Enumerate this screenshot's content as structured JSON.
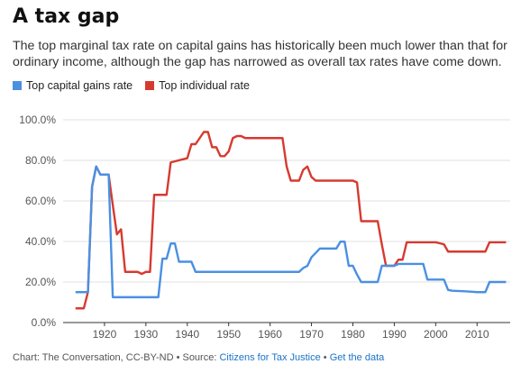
{
  "chart_data": {
    "type": "line",
    "title": "A tax gap",
    "subtitle": "The top marginal tax rate on capital gains has historically been much lower than that for ordinary income, although the gap has narrowed as overall tax rates have come down.",
    "xlabel": "",
    "ylabel": "",
    "xlim": [
      1910,
      2018
    ],
    "ylim": [
      0,
      100
    ],
    "x_ticks": [
      1920,
      1930,
      1940,
      1950,
      1960,
      1970,
      1980,
      1990,
      2000,
      2010
    ],
    "y_ticks": [
      0,
      20,
      40,
      60,
      80,
      100
    ],
    "y_tick_labels": [
      "0.0%",
      "20.0%",
      "40.0%",
      "60.0%",
      "80.0%",
      "100.0%"
    ],
    "grid": "horizontal",
    "legend_position": "top-left",
    "series": [
      {
        "name": "Top capital gains rate",
        "color": "#4a90e2",
        "points": [
          [
            1913,
            15
          ],
          [
            1915,
            15
          ],
          [
            1916,
            15
          ],
          [
            1917,
            67
          ],
          [
            1918,
            77
          ],
          [
            1919,
            73
          ],
          [
            1920,
            73
          ],
          [
            1921,
            73
          ],
          [
            1922,
            12.5
          ],
          [
            1933,
            12.5
          ],
          [
            1934,
            31.5
          ],
          [
            1935,
            31.5
          ],
          [
            1936,
            39
          ],
          [
            1937,
            39
          ],
          [
            1938,
            30
          ],
          [
            1941,
            30
          ],
          [
            1942,
            25
          ],
          [
            1967,
            25
          ],
          [
            1968,
            26.9
          ],
          [
            1969,
            27.9
          ],
          [
            1970,
            32.2
          ],
          [
            1971,
            34.3
          ],
          [
            1972,
            36.5
          ],
          [
            1976,
            36.5
          ],
          [
            1977,
            39.9
          ],
          [
            1978,
            39.9
          ],
          [
            1979,
            28
          ],
          [
            1980,
            28
          ],
          [
            1981,
            23.7
          ],
          [
            1982,
            20
          ],
          [
            1986,
            20
          ],
          [
            1987,
            28
          ],
          [
            1990,
            28
          ],
          [
            1991,
            28.9
          ],
          [
            1997,
            28.9
          ],
          [
            1998,
            21.2
          ],
          [
            2002,
            21.2
          ],
          [
            2003,
            16.1
          ],
          [
            2004,
            15.7
          ],
          [
            2008,
            15.3
          ],
          [
            2010,
            15
          ],
          [
            2012,
            15
          ],
          [
            2013,
            20
          ],
          [
            2017,
            20
          ]
        ]
      },
      {
        "name": "Top individual rate",
        "color": "#d63a2f",
        "points": [
          [
            1913,
            7
          ],
          [
            1915,
            7
          ],
          [
            1916,
            15
          ],
          [
            1917,
            67
          ],
          [
            1918,
            77
          ],
          [
            1919,
            73
          ],
          [
            1921,
            73
          ],
          [
            1922,
            58
          ],
          [
            1923,
            43.5
          ],
          [
            1924,
            46
          ],
          [
            1925,
            25
          ],
          [
            1928,
            25
          ],
          [
            1929,
            24
          ],
          [
            1930,
            25
          ],
          [
            1931,
            25
          ],
          [
            1932,
            63
          ],
          [
            1935,
            63
          ],
          [
            1936,
            79
          ],
          [
            1940,
            81.1
          ],
          [
            1941,
            88
          ],
          [
            1942,
            88
          ],
          [
            1944,
            94
          ],
          [
            1945,
            94
          ],
          [
            1946,
            86.5
          ],
          [
            1947,
            86.5
          ],
          [
            1948,
            82.1
          ],
          [
            1949,
            82.1
          ],
          [
            1950,
            84.4
          ],
          [
            1951,
            91
          ],
          [
            1952,
            92
          ],
          [
            1953,
            92
          ],
          [
            1954,
            91
          ],
          [
            1963,
            91
          ],
          [
            1964,
            77
          ],
          [
            1965,
            70
          ],
          [
            1967,
            70
          ],
          [
            1968,
            75.3
          ],
          [
            1969,
            77
          ],
          [
            1970,
            71.8
          ],
          [
            1971,
            70
          ],
          [
            1980,
            70
          ],
          [
            1981,
            69.1
          ],
          [
            1982,
            50
          ],
          [
            1986,
            50
          ],
          [
            1987,
            38.5
          ],
          [
            1988,
            28
          ],
          [
            1990,
            28
          ],
          [
            1991,
            31
          ],
          [
            1992,
            31
          ],
          [
            1993,
            39.6
          ],
          [
            2000,
            39.6
          ],
          [
            2001,
            39.1
          ],
          [
            2002,
            38.6
          ],
          [
            2003,
            35
          ],
          [
            2012,
            35
          ],
          [
            2013,
            39.6
          ],
          [
            2017,
            39.6
          ]
        ]
      }
    ]
  },
  "footer": {
    "prefix": "Chart: The Conversation, CC-BY-ND • Source: ",
    "source_link": "Citizens for Tax Justice",
    "separator": " • ",
    "data_link": "Get the data"
  }
}
